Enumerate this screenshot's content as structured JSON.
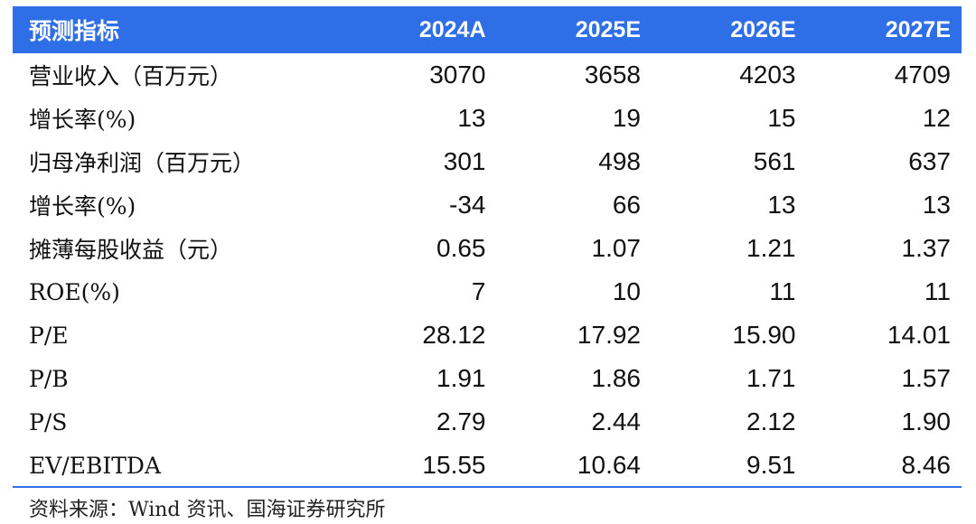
{
  "table": {
    "headers": [
      "预测指标",
      "2024A",
      "2025E",
      "2026E",
      "2027E"
    ],
    "rows": [
      {
        "label": "营业收入（百万元）",
        "values": [
          "3070",
          "3658",
          "4203",
          "4709"
        ]
      },
      {
        "label": "增长率(%)",
        "values": [
          "13",
          "19",
          "15",
          "12"
        ]
      },
      {
        "label": "归母净利润（百万元）",
        "values": [
          "301",
          "498",
          "561",
          "637"
        ]
      },
      {
        "label": "增长率(%)",
        "values": [
          "-34",
          "66",
          "13",
          "13"
        ]
      },
      {
        "label": "摊薄每股收益（元）",
        "values": [
          "0.65",
          "1.07",
          "1.21",
          "1.37"
        ]
      },
      {
        "label": "ROE(%)",
        "values": [
          "7",
          "10",
          "11",
          "11"
        ]
      },
      {
        "label": "P/E",
        "values": [
          "28.12",
          "17.92",
          "15.90",
          "14.01"
        ]
      },
      {
        "label": "P/B",
        "values": [
          "1.91",
          "1.86",
          "1.71",
          "1.57"
        ]
      },
      {
        "label": "P/S",
        "values": [
          "2.79",
          "2.44",
          "2.12",
          "1.90"
        ]
      },
      {
        "label": "EV/EBITDA",
        "values": [
          "15.55",
          "10.64",
          "9.51",
          "8.46"
        ]
      }
    ]
  },
  "source": "资料来源：Wind 资讯、国海证券研究所",
  "colors": {
    "header_bg": "#2e6ee6",
    "header_text": "#ffffff",
    "divider": "#2e6ee6"
  }
}
